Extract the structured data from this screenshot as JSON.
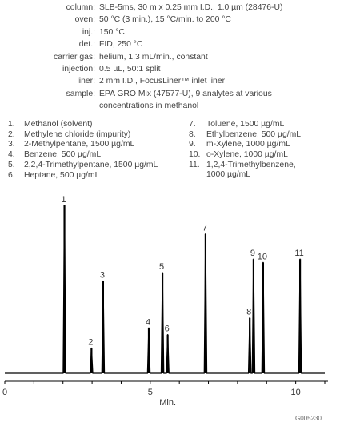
{
  "conditions": [
    {
      "label": "column:",
      "value": "SLB-5ms, 30 m x 0.25 mm I.D., 1.0 µm (28476-U)"
    },
    {
      "label": "oven:",
      "value": "50 °C (3 min.), 15 °C/min. to 200 °C"
    },
    {
      "label": "inj.:",
      "value": "150 °C"
    },
    {
      "label": "det.:",
      "value": "FID, 250 °C"
    },
    {
      "label": "carrier gas:",
      "value": "helium, 1.3 mL/min., constant"
    },
    {
      "label": "injection:",
      "value": "0.5 µL, 50:1 split"
    },
    {
      "label": "liner:",
      "value": "2 mm I.D., FocusLiner™ inlet liner"
    },
    {
      "label": "sample:",
      "value": "EPA GRO Mix (47577-U), 9 analytes at various",
      "value2": "concentrations in methanol"
    }
  ],
  "analytes": [
    {
      "num": "1.",
      "name": "Methanol (solvent)"
    },
    {
      "num": "2.",
      "name": "Methylene chloride (impurity)"
    },
    {
      "num": "3.",
      "name": "2-Methylpentane, 1500 µg/mL"
    },
    {
      "num": "4.",
      "name": "Benzene, 500 µg/mL"
    },
    {
      "num": "5.",
      "name": "2,2,4-Trimethylpentane, 1500 µg/mL"
    },
    {
      "num": "6.",
      "name": "Heptane, 500 µg/mL"
    },
    {
      "num": "7.",
      "name": "Toluene, 1500 µg/mL"
    },
    {
      "num": "8.",
      "name": "Ethylbenzene, 500 µg/mL"
    },
    {
      "num": "9.",
      "name": "m-Xylene, 1000 µg/mL"
    },
    {
      "num": "10.",
      "name": "o-Xylene, 1000 µg/mL"
    },
    {
      "num": "11.",
      "name": "1,2,4-Trimethylbenzene,",
      "name2": "1000 µg/mL"
    }
  ],
  "chart_data": {
    "type": "line",
    "xlabel": "Min.",
    "ylabel": "",
    "xlim": [
      0,
      11
    ],
    "xticks": [
      0,
      5,
      10
    ],
    "ylim": [
      0,
      100
    ],
    "grid": false,
    "line_color": "#000000",
    "peaks": [
      {
        "label": "1",
        "rt": 2.05,
        "height": 100
      },
      {
        "label": "2",
        "rt": 2.98,
        "height": 15
      },
      {
        "label": "3",
        "rt": 3.38,
        "height": 55
      },
      {
        "label": "4",
        "rt": 4.95,
        "height": 27
      },
      {
        "label": "5",
        "rt": 5.42,
        "height": 60
      },
      {
        "label": "6",
        "rt": 5.6,
        "height": 23
      },
      {
        "label": "7",
        "rt": 6.9,
        "height": 83
      },
      {
        "label": "8",
        "rt": 8.42,
        "height": 33
      },
      {
        "label": "9",
        "rt": 8.55,
        "height": 68
      },
      {
        "label": "10",
        "rt": 8.88,
        "height": 66
      },
      {
        "label": "11",
        "rt": 10.15,
        "height": 68
      }
    ]
  },
  "figure_code": "G005230"
}
